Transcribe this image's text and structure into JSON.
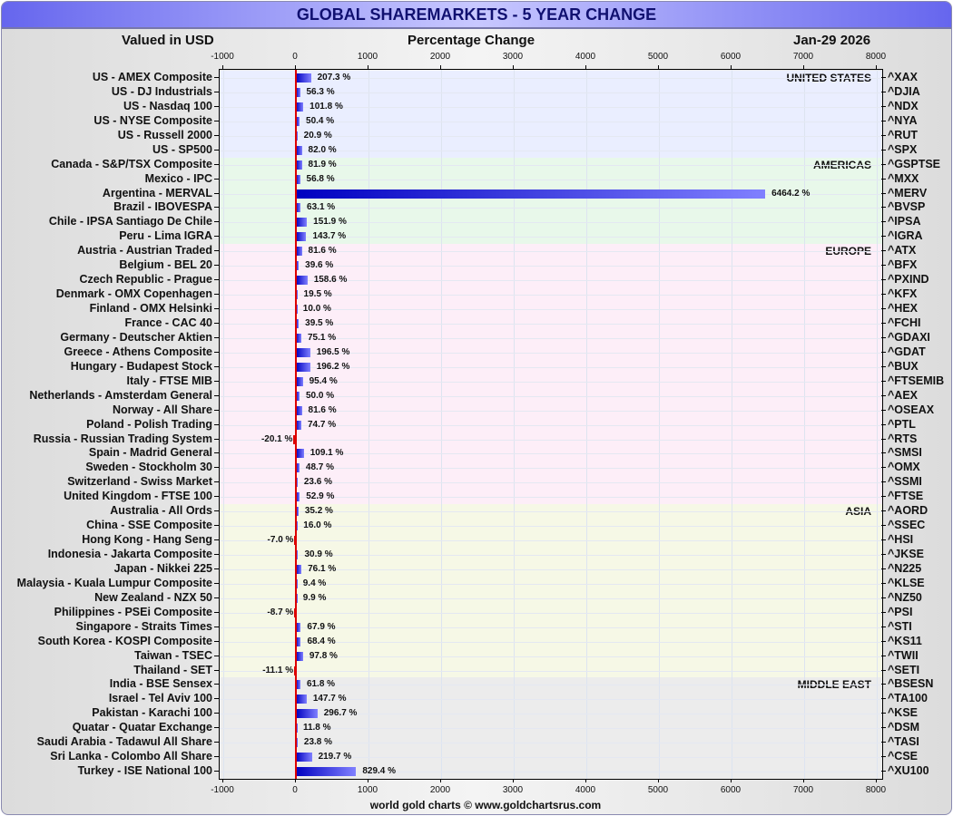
{
  "header": {
    "title": "GLOBAL SHAREMARKETS - 5 YEAR CHANGE",
    "left": "Valued in USD",
    "center": "Percentage Change",
    "date": "Jan-29  2026"
  },
  "footer": "world gold charts © www.goldchartsrus.com",
  "colors": {
    "bar_pos": "#1010cc",
    "bar_neg": "#dd0000",
    "zero_line": "#dd0000"
  },
  "chart_data": {
    "type": "bar",
    "orientation": "horizontal",
    "xlim": [
      -1000,
      8000
    ],
    "xticks": [
      "-1000",
      "0",
      "1000",
      "2000",
      "3000",
      "4000",
      "5000",
      "6000",
      "7000",
      "8000"
    ],
    "regions": [
      {
        "name": "UNITED STATES",
        "color": "#eaeeff",
        "rows": [
          [
            "US - AMEX Composite",
            207.3,
            "^XAX"
          ],
          [
            "US - DJ Industrials",
            56.3,
            "^DJIA"
          ],
          [
            "US - Nasdaq 100",
            101.8,
            "^NDX"
          ],
          [
            "US - NYSE Composite",
            50.4,
            "^NYA"
          ],
          [
            "US - Russell 2000",
            20.9,
            "^RUT"
          ],
          [
            "US - SP500",
            82.0,
            "^SPX"
          ]
        ]
      },
      {
        "name": "AMERICAS",
        "color": "#e8f8ea",
        "rows": [
          [
            "Canada - S&P/TSX Composite",
            81.9,
            "^GSPTSE"
          ],
          [
            "Mexico - IPC",
            56.8,
            "^MXX"
          ],
          [
            "Argentina - MERVAL",
            6464.2,
            "^MERV"
          ],
          [
            "Brazil - IBOVESPA",
            63.1,
            "^BVSP"
          ],
          [
            "Chile - IPSA Santiago De Chile",
            151.9,
            "^IPSA"
          ],
          [
            "Peru - Lima IGRA",
            143.7,
            "^IGRA"
          ]
        ]
      },
      {
        "name": "EUROPE",
        "color": "#fdeef8",
        "rows": [
          [
            "Austria - Austrian Traded",
            81.6,
            "^ATX"
          ],
          [
            "Belgium - BEL 20",
            39.6,
            "^BFX"
          ],
          [
            "Czech Republic - Prague",
            158.6,
            "^PXIND"
          ],
          [
            "Denmark - OMX Copenhagen",
            19.5,
            "^KFX"
          ],
          [
            "Finland - OMX Helsinki",
            10.0,
            "^HEX"
          ],
          [
            "France - CAC 40",
            39.5,
            "^FCHI"
          ],
          [
            "Germany - Deutscher Aktien",
            75.1,
            "^GDAXI"
          ],
          [
            "Greece - Athens Composite",
            196.5,
            "^GDAT"
          ],
          [
            "Hungary - Budapest Stock",
            196.2,
            "^BUX"
          ],
          [
            "Italy - FTSE MIB",
            95.4,
            "^FTSEMIB"
          ],
          [
            "Netherlands - Amsterdam General",
            50.0,
            "^AEX"
          ],
          [
            "Norway - All Share",
            81.6,
            "^OSEAX"
          ],
          [
            "Poland - Polish Trading",
            74.7,
            "^PTL"
          ],
          [
            "Russia - Russian Trading System",
            -20.1,
            "^RTS"
          ],
          [
            "Spain - Madrid General",
            109.1,
            "^SMSI"
          ],
          [
            "Sweden - Stockholm 30",
            48.7,
            "^OMX"
          ],
          [
            "Switzerland - Swiss Market",
            23.6,
            "^SSMI"
          ],
          [
            "United Kingdom - FTSE 100",
            52.9,
            "^FTSE"
          ]
        ]
      },
      {
        "name": "ASIA",
        "color": "#f6f8e6",
        "rows": [
          [
            "Australia - All Ords",
            35.2,
            "^AORD"
          ],
          [
            "China - SSE Composite",
            16.0,
            "^SSEC"
          ],
          [
            "Hong Kong - Hang Seng",
            -7.0,
            "^HSI"
          ],
          [
            "Indonesia - Jakarta Composite",
            30.9,
            "^JKSE"
          ],
          [
            "Japan - Nikkei 225",
            76.1,
            "^N225"
          ],
          [
            "Malaysia - Kuala Lumpur Composite",
            9.4,
            "^KLSE"
          ],
          [
            "New Zealand - NZX 50",
            9.9,
            "^NZ50"
          ],
          [
            "Philippines - PSEi Composite",
            -8.7,
            "^PSI"
          ],
          [
            "Singapore - Straits Times",
            67.9,
            "^STI"
          ],
          [
            "South Korea - KOSPI Composite",
            68.4,
            "^KS11"
          ],
          [
            "Taiwan - TSEC",
            97.8,
            "^TWII"
          ],
          [
            "Thailand - SET",
            -11.1,
            "^SETI"
          ]
        ]
      },
      {
        "name": "MIDDLE EAST",
        "color": "#ececec",
        "rows": [
          [
            "India - BSE Sensex",
            61.8,
            "^BSESN"
          ],
          [
            "Israel - Tel Aviv 100",
            147.7,
            "^TA100"
          ],
          [
            "Pakistan - Karachi 100",
            296.7,
            "^KSE"
          ],
          [
            "Quatar - Quatar Exchange",
            11.8,
            "^DSM"
          ],
          [
            "Saudi Arabia - Tadawul All Share",
            23.8,
            "^TASI"
          ],
          [
            "Sri Lanka - Colombo All Share",
            219.7,
            "^CSE"
          ],
          [
            "Turkey - ISE National 100",
            829.4,
            "^XU100"
          ]
        ]
      }
    ]
  }
}
